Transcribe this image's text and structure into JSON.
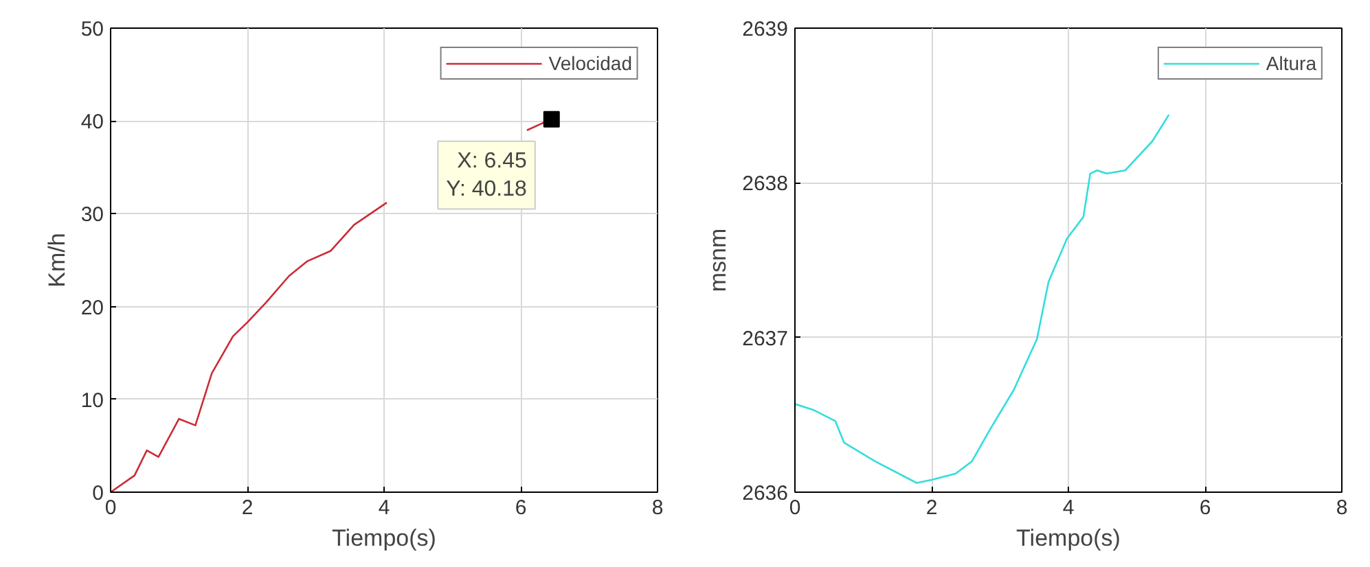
{
  "chart_data": [
    {
      "type": "line",
      "xlabel": "Tiempo(s)",
      "ylabel": "Km/h",
      "xlim": [
        0,
        8
      ],
      "ylim": [
        0,
        50
      ],
      "xticks": [
        0,
        2,
        4,
        6,
        8
      ],
      "yticks": [
        0,
        10,
        20,
        30,
        40,
        50
      ],
      "grid": true,
      "legend": "top right",
      "series": [
        {
          "name": "Velocidad",
          "color": "#cc2b36",
          "x": [
            0,
            0.35,
            0.53,
            0.7,
            1.0,
            1.24,
            1.48,
            1.79,
            2.0,
            2.27,
            2.61,
            2.88,
            3.22,
            3.56,
            4.04,
            5.0,
            5.88,
            6.09,
            6.33,
            6.45
          ],
          "values": [
            0,
            1.8,
            4.5,
            3.8,
            7.9,
            7.2,
            12.8,
            16.8,
            18.3,
            20.4,
            23.3,
            24.9,
            26.0,
            28.8,
            31.2,
            null,
            null,
            39.0,
            39.8,
            40.18
          ]
        }
      ],
      "annotations": [
        {
          "text": "X: 6.45\nY: 40.18",
          "x": 6.45,
          "y": 40.18
        }
      ]
    },
    {
      "type": "line",
      "xlabel": "Tiempo(s)",
      "ylabel": "msnm",
      "xlim": [
        0,
        8
      ],
      "ylim": [
        2636,
        2639
      ],
      "xticks": [
        0,
        2,
        4,
        6,
        8
      ],
      "yticks": [
        2636,
        2637,
        2638,
        2639
      ],
      "grid": true,
      "legend": "top right",
      "series": [
        {
          "name": "Altura",
          "color": "#33dddd",
          "x": [
            0,
            0.28,
            0.59,
            0.72,
            1.17,
            1.78,
            2.0,
            2.35,
            2.59,
            2.86,
            3.2,
            3.54,
            3.71,
            3.98,
            4.22,
            4.32,
            4.42,
            4.56,
            4.83,
            5.23,
            5.47
          ],
          "values": [
            2636.57,
            2636.53,
            2636.46,
            2636.32,
            2636.2,
            2636.06,
            2636.08,
            2636.12,
            2636.2,
            2636.41,
            2636.66,
            2636.99,
            2637.36,
            2637.64,
            2637.78,
            2638.06,
            2638.08,
            2638.06,
            2638.08,
            2638.27,
            2638.44
          ]
        }
      ]
    }
  ]
}
